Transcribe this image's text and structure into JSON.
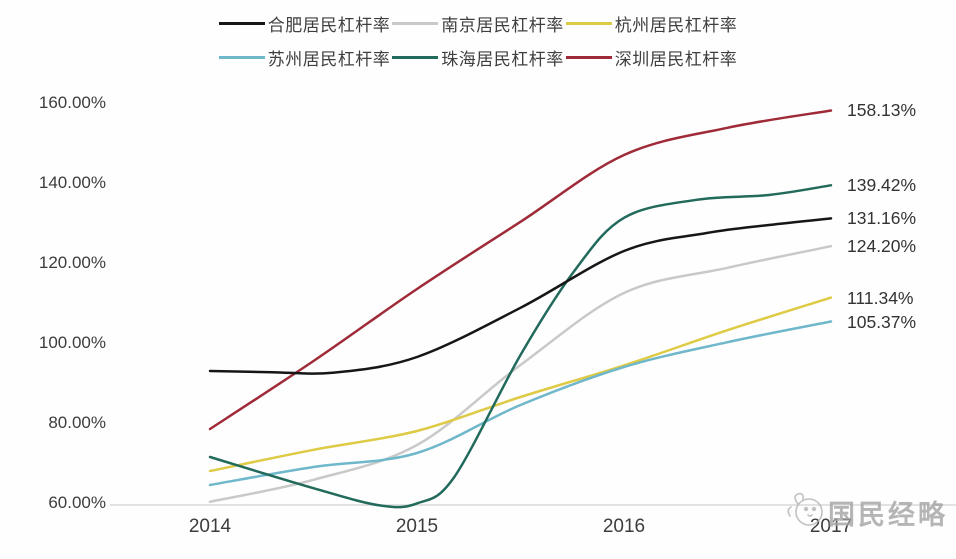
{
  "watermark": {
    "text": "国民经略",
    "icon": "doodle-mascot-icon"
  },
  "chart_data": {
    "type": "line",
    "title": "",
    "xlabel": "",
    "ylabel": "",
    "grid": false,
    "legend_position": "top",
    "x_axis": {
      "range": [
        2014,
        2017
      ],
      "ticks": [
        "2014",
        "2015",
        "2016",
        "2017"
      ],
      "tick_values": [
        2014,
        2015,
        2016,
        2017
      ]
    },
    "y_axis": {
      "range": [
        60,
        160
      ],
      "unit": "%",
      "ticks": [
        "160.00%",
        "140.00%",
        "120.00%",
        "100.00%",
        "80.00%",
        "60.00%"
      ],
      "tick_values": [
        160,
        140,
        120,
        100,
        80,
        60
      ]
    },
    "legend_rows": [
      [
        0,
        1,
        2
      ],
      [
        3,
        4,
        5
      ]
    ],
    "draw_order": [
      1,
      2,
      3,
      4,
      5,
      0
    ],
    "series": [
      {
        "name": "合肥居民杠杆率",
        "city": "合肥",
        "color": "#161616",
        "end_label": "131.16%",
        "end_value": 131.16,
        "points": [
          [
            2014,
            93.0
          ],
          [
            2014.3,
            92.7
          ],
          [
            2014.6,
            92.6
          ],
          [
            2015,
            96.5
          ],
          [
            2015.5,
            108.8
          ],
          [
            2016,
            123.0
          ],
          [
            2016.4,
            127.5
          ],
          [
            2016.7,
            129.5
          ],
          [
            2017,
            131.16
          ]
        ]
      },
      {
        "name": "南京居民杠杆率",
        "city": "南京",
        "color": "#c9c9c9",
        "end_label": "124.20%",
        "end_value": 124.2,
        "points": [
          [
            2014,
            60.3
          ],
          [
            2014.5,
            65.8
          ],
          [
            2015,
            74.5
          ],
          [
            2015.5,
            94.5
          ],
          [
            2016,
            112.5
          ],
          [
            2016.5,
            118.8
          ],
          [
            2017,
            124.2
          ]
        ]
      },
      {
        "name": "杭州居民杠杆率",
        "city": "杭州",
        "color": "#ddca45",
        "end_label": "111.34%",
        "end_value": 111.34,
        "points": [
          [
            2014,
            68.0
          ],
          [
            2014.5,
            73.3
          ],
          [
            2015,
            78.0
          ],
          [
            2015.5,
            86.5
          ],
          [
            2016,
            94.4
          ],
          [
            2016.5,
            103.2
          ],
          [
            2017,
            111.34
          ]
        ]
      },
      {
        "name": "苏州居民杠杆率",
        "city": "苏州",
        "color": "#6fb7cb",
        "end_label": "105.37%",
        "end_value": 105.37,
        "points": [
          [
            2014,
            64.5
          ],
          [
            2014.5,
            69.0
          ],
          [
            2015,
            72.5
          ],
          [
            2015.5,
            84.5
          ],
          [
            2016,
            94.0
          ],
          [
            2016.5,
            100.2
          ],
          [
            2017,
            105.37
          ]
        ]
      },
      {
        "name": "珠海居民杠杆率",
        "city": "珠海",
        "color": "#226a5c",
        "end_label": "139.42%",
        "end_value": 139.42,
        "points": [
          [
            2014,
            71.5
          ],
          [
            2014.5,
            63.7
          ],
          [
            2014.82,
            59.4
          ],
          [
            2015.0,
            59.9
          ],
          [
            2015.18,
            66.5
          ],
          [
            2015.5,
            97.0
          ],
          [
            2015.76,
            118.0
          ],
          [
            2016,
            131.3
          ],
          [
            2016.35,
            135.8
          ],
          [
            2016.7,
            137.0
          ],
          [
            2017,
            139.42
          ]
        ]
      },
      {
        "name": "深圳居民杠杆率",
        "city": "深圳",
        "color": "#9f2b39",
        "end_label": "158.13%",
        "end_value": 158.13,
        "points": [
          [
            2014,
            78.5
          ],
          [
            2014.5,
            95.5
          ],
          [
            2015,
            113.5
          ],
          [
            2015.5,
            130.3
          ],
          [
            2016,
            147.0
          ],
          [
            2016.5,
            153.8
          ],
          [
            2017,
            158.13
          ]
        ]
      }
    ]
  }
}
